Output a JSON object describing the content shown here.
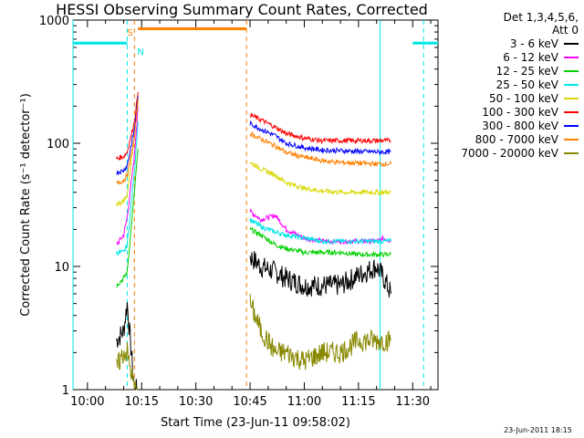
{
  "chart_data": {
    "type": "line",
    "title": "HESSI Observing Summary Count Rates, Corrected",
    "xlabel": "Start Time (23-Jun-11 09:58:02)",
    "ylabel": "Corrected Count Rate (s⁻¹ detector⁻¹)",
    "y_scale": "log",
    "ylim": [
      1,
      1000
    ],
    "xlim": [
      "09:56",
      "11:37"
    ],
    "x_ticks": [
      "10:00",
      "10:15",
      "10:30",
      "10:45",
      "11:00",
      "11:15",
      "11:30"
    ],
    "y_ticks": [
      "1",
      "10",
      "100",
      "1000"
    ],
    "grid": false,
    "legend_position": "right, outside plot",
    "legend_header": [
      "Det 1,3,4,5,6,",
      "Att 0"
    ],
    "timestamp": "23-Jun-2011 18:15",
    "flags": [
      {
        "letter": "S",
        "time": "10:13"
      },
      {
        "letter": "N",
        "time": "10:13"
      }
    ],
    "night_periods": [
      [
        "09:56",
        "10:11"
      ],
      [
        "11:30",
        "11:37"
      ]
    ],
    "saa_periods": [
      [
        "10:14",
        "10:44"
      ]
    ],
    "data_gaps": [
      [
        "10:08",
        "10:14"
      ],
      [
        "10:44",
        "10:45"
      ],
      [
        "11:24",
        "11:25"
      ]
    ],
    "vertical_markers": [
      {
        "time": "09:56",
        "style": "solid",
        "color": "#00e5e5"
      },
      {
        "time": "10:11",
        "style": "dashed",
        "color": "#00e5e5"
      },
      {
        "time": "10:13",
        "style": "dashed",
        "color": "#ff7f00"
      },
      {
        "time": "10:44",
        "style": "dashed",
        "color": "#ff7f00"
      },
      {
        "time": "11:21",
        "style": "solid",
        "color": "#00e5e5"
      },
      {
        "time": "11:33",
        "style": "dashed",
        "color": "#00e5e5"
      }
    ],
    "series": [
      {
        "name": "3 - 6 keV",
        "color": "#000000",
        "x": [
          "10:08",
          "10:10",
          "10:11",
          "10:13",
          "10:14",
          "10:45",
          "10:48",
          "10:52",
          "10:55",
          "11:00",
          "11:05",
          "11:10",
          "11:15",
          "11:20",
          "11:22",
          "11:24"
        ],
        "y": [
          2.5,
          3,
          5,
          1,
          1,
          12,
          10,
          9,
          8,
          7,
          7,
          7,
          8.5,
          10,
          8,
          6
        ]
      },
      {
        "name": "6 - 12 keV",
        "color": "#ff00ff",
        "x": [
          "10:08",
          "10:10",
          "10:11",
          "10:13",
          "10:14",
          "10:45",
          "10:48",
          "10:52",
          "10:55",
          "11:00",
          "11:05",
          "11:10",
          "11:15",
          "11:20",
          "11:22",
          "11:24"
        ],
        "y": [
          15,
          18,
          25,
          80,
          200,
          28,
          24,
          26,
          20,
          17,
          16,
          16,
          16,
          16,
          17,
          16
        ]
      },
      {
        "name": "12 - 25 keV",
        "color": "#00d000",
        "x": [
          "10:08",
          "10:10",
          "10:11",
          "10:13",
          "10:14",
          "10:45",
          "10:48",
          "10:52",
          "10:55",
          "11:00",
          "11:05",
          "11:10",
          "11:15",
          "11:20",
          "11:22",
          "11:24"
        ],
        "y": [
          7,
          8,
          9,
          40,
          90,
          20,
          18,
          15,
          14,
          13,
          13,
          13,
          12.5,
          12.5,
          12.5,
          12.5
        ]
      },
      {
        "name": "25 - 50 keV",
        "color": "#00e5e5",
        "x": [
          "10:08",
          "10:10",
          "10:11",
          "10:13",
          "10:14",
          "10:45",
          "10:48",
          "10:52",
          "10:55",
          "11:00",
          "11:05",
          "11:10",
          "11:15",
          "11:20",
          "11:22",
          "11:24"
        ],
        "y": [
          13,
          13,
          15,
          60,
          150,
          24,
          21,
          19,
          18,
          17,
          16,
          16,
          16,
          16,
          16,
          16
        ]
      },
      {
        "name": "50 - 100 keV",
        "color": "#d8d800",
        "x": [
          "10:08",
          "10:10",
          "10:11",
          "10:13",
          "10:14",
          "10:45",
          "10:48",
          "10:52",
          "10:55",
          "11:00",
          "11:05",
          "11:10",
          "11:15",
          "11:20",
          "11:22",
          "11:24"
        ],
        "y": [
          32,
          34,
          38,
          120,
          220,
          70,
          62,
          55,
          48,
          43,
          41,
          40,
          40,
          40,
          40,
          40
        ]
      },
      {
        "name": "100 - 300 keV",
        "color": "#ff0000",
        "x": [
          "10:08",
          "10:10",
          "10:11",
          "10:13",
          "10:14",
          "10:45",
          "10:48",
          "10:52",
          "10:55",
          "11:00",
          "11:05",
          "11:10",
          "11:15",
          "11:20",
          "11:22",
          "11:24"
        ],
        "y": [
          75,
          78,
          85,
          150,
          260,
          170,
          155,
          135,
          120,
          110,
          105,
          105,
          105,
          105,
          105,
          105
        ]
      },
      {
        "name": "300 - 800 keV",
        "color": "#0000ff",
        "x": [
          "10:08",
          "10:10",
          "10:11",
          "10:13",
          "10:14",
          "10:45",
          "10:48",
          "10:52",
          "10:55",
          "11:00",
          "11:05",
          "11:10",
          "11:15",
          "11:20",
          "11:22",
          "11:24"
        ],
        "y": [
          58,
          60,
          66,
          130,
          240,
          145,
          130,
          115,
          100,
          92,
          88,
          87,
          86,
          85,
          85,
          85
        ]
      },
      {
        "name": "800 - 7000 keV",
        "color": "#ff7f00",
        "x": [
          "10:08",
          "10:10",
          "10:11",
          "10:13",
          "10:14",
          "10:45",
          "10:48",
          "10:52",
          "10:55",
          "11:00",
          "11:05",
          "11:10",
          "11:15",
          "11:20",
          "11:22",
          "11:24"
        ],
        "y": [
          47,
          50,
          55,
          110,
          230,
          120,
          108,
          95,
          84,
          77,
          72,
          70,
          69,
          68,
          68,
          68
        ]
      },
      {
        "name": "7000 - 20000 keV",
        "color": "#888800",
        "x": [
          "10:08",
          "10:10",
          "10:11",
          "10:13",
          "10:14",
          "10:45",
          "10:48",
          "10:52",
          "10:55",
          "11:00",
          "11:05",
          "11:10",
          "11:15",
          "11:20",
          "11:22",
          "11:24"
        ],
        "y": [
          1.5,
          2,
          2,
          1,
          1,
          5,
          3,
          2,
          2,
          1.7,
          2,
          2,
          2.5,
          2.5,
          2.5,
          2.5
        ]
      }
    ]
  }
}
